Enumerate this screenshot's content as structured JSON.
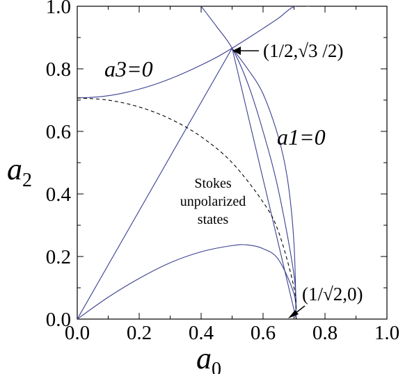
{
  "chart_data": {
    "type": "line",
    "title": "",
    "xlabel": "a",
    "xlabel_sub": "0",
    "ylabel": "a",
    "ylabel_sub": "2",
    "xlim": [
      0,
      1
    ],
    "ylim": [
      0,
      1
    ],
    "x_ticks": [
      "0.0",
      "0.2",
      "0.4",
      "0.6",
      "0.8",
      "1.0"
    ],
    "y_ticks": [
      "0.0",
      "0.2",
      "0.4",
      "0.6",
      "0.8",
      "1.0"
    ],
    "grid": false,
    "series": [
      {
        "curve_label": "a3=0",
        "style": "solid",
        "x": [
          0,
          0.05,
          0.1,
          0.15,
          0.2,
          0.25,
          0.3,
          0.35,
          0.4,
          0.45,
          0.5,
          0.55,
          0.6,
          0.65,
          0.7,
          0.75
        ],
        "y": [
          0.707,
          0.709,
          0.714,
          0.723,
          0.735,
          0.75,
          0.768,
          0.789,
          0.812,
          0.837,
          0.866,
          0.897,
          0.929,
          0.962,
          0.999,
          1.0
        ]
      },
      {
        "curve_label": "a1=0",
        "style": "solid",
        "x": [
          0.4,
          0.45,
          0.5,
          0.55,
          0.6,
          0.65,
          0.7,
          0.707
        ],
        "y": [
          1.0,
          0.935,
          0.866,
          0.755,
          0.6,
          0.41,
          0.14,
          0.0
        ]
      },
      {
        "curve_label": "",
        "style": "solid",
        "x": [
          0.5,
          0.55,
          0.6,
          0.65,
          0.68,
          0.7,
          0.707
        ],
        "y": [
          0.866,
          0.8,
          0.72,
          0.58,
          0.44,
          0.24,
          0.0
        ]
      },
      {
        "curve_label": "",
        "style": "solid",
        "x": [
          0,
          0.5,
          0.707
        ],
        "y": [
          0,
          0.866,
          0.0
        ]
      },
      {
        "curve_label": "",
        "style": "solid",
        "x": [
          0,
          0.1,
          0.2,
          0.3,
          0.4,
          0.5,
          0.55,
          0.6,
          0.65,
          0.7,
          0.707
        ],
        "y": [
          0,
          0.07,
          0.13,
          0.18,
          0.215,
          0.235,
          0.237,
          0.225,
          0.19,
          0.08,
          0.0
        ]
      },
      {
        "curve_label": "",
        "style": "dashed",
        "x": [
          0,
          0.1,
          0.2,
          0.3,
          0.4,
          0.5,
          0.6,
          0.65,
          0.7,
          0.707
        ],
        "y": [
          0.707,
          0.7,
          0.678,
          0.64,
          0.583,
          0.5,
          0.374,
          0.279,
          0.1,
          0.0
        ]
      }
    ],
    "annotations": {
      "region": [
        "Stokes",
        "unpolarized",
        "states"
      ],
      "point_top": {
        "text": "(1/2,√3 /2)",
        "x": 0.5,
        "y": 0.866
      },
      "point_bottom": {
        "text": "(1/√2,0)",
        "x": 0.707,
        "y": 0.0
      }
    }
  }
}
